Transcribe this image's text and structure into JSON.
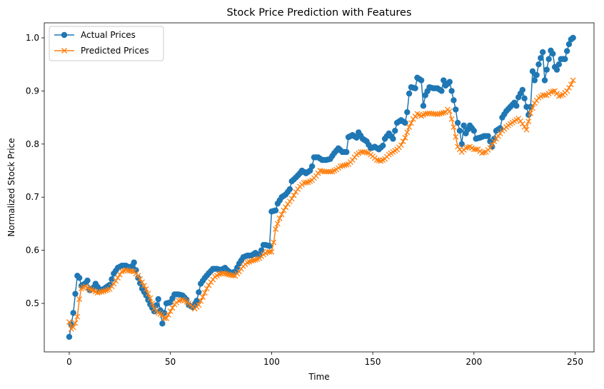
{
  "chart_data": {
    "type": "line",
    "title": "Stock Price Prediction with Features",
    "xlabel": "Time",
    "ylabel": "Normalized Stock Price",
    "xlim": [
      -12.35,
      259.35
    ],
    "ylim": [
      0.4087,
      1.0282
    ],
    "xticks": [
      0,
      50,
      100,
      150,
      200,
      250
    ],
    "yticks": [
      0.5,
      0.6,
      0.7,
      0.8,
      0.9,
      1.0
    ],
    "ytick_labels": [
      "0.5",
      "0.6",
      "0.7",
      "0.8",
      "0.9",
      "1.0"
    ],
    "grid": false,
    "legend_position": "top-left",
    "series": [
      {
        "name": "Actual Prices",
        "color": "#1f77b4",
        "marker": "circle",
        "keypoints": [
          [
            0,
            0.437
          ],
          [
            1,
            0.46
          ],
          [
            2,
            0.482
          ],
          [
            3,
            0.518
          ],
          [
            4,
            0.552
          ],
          [
            5,
            0.548
          ],
          [
            6,
            0.533
          ],
          [
            8,
            0.538
          ],
          [
            9,
            0.543
          ],
          [
            10,
            0.525
          ],
          [
            12,
            0.53
          ],
          [
            13,
            0.537
          ],
          [
            15,
            0.525
          ],
          [
            17,
            0.527
          ],
          [
            20,
            0.535
          ],
          [
            22,
            0.556
          ],
          [
            24,
            0.567
          ],
          [
            26,
            0.571
          ],
          [
            28,
            0.571
          ],
          [
            30,
            0.567
          ],
          [
            31,
            0.57
          ],
          [
            32,
            0.577
          ],
          [
            34,
            0.548
          ],
          [
            36,
            0.528
          ],
          [
            38,
            0.515
          ],
          [
            40,
            0.498
          ],
          [
            42,
            0.485
          ],
          [
            44,
            0.508
          ],
          [
            45,
            0.487
          ],
          [
            46,
            0.462
          ],
          [
            47,
            0.482
          ],
          [
            48,
            0.5
          ],
          [
            50,
            0.502
          ],
          [
            52,
            0.517
          ],
          [
            54,
            0.517
          ],
          [
            56,
            0.515
          ],
          [
            58,
            0.507
          ],
          [
            59,
            0.497
          ],
          [
            61,
            0.493
          ],
          [
            63,
            0.505
          ],
          [
            65,
            0.537
          ],
          [
            67,
            0.548
          ],
          [
            69,
            0.557
          ],
          [
            71,
            0.565
          ],
          [
            73,
            0.565
          ],
          [
            75,
            0.563
          ],
          [
            77,
            0.567
          ],
          [
            78,
            0.563
          ],
          [
            80,
            0.557
          ],
          [
            82,
            0.56
          ],
          [
            84,
            0.575
          ],
          [
            86,
            0.587
          ],
          [
            88,
            0.59
          ],
          [
            90,
            0.59
          ],
          [
            92,
            0.595
          ],
          [
            94,
            0.59
          ],
          [
            96,
            0.61
          ],
          [
            97,
            0.61
          ],
          [
            99,
            0.608
          ],
          [
            100,
            0.673
          ],
          [
            102,
            0.675
          ],
          [
            103,
            0.688
          ],
          [
            105,
            0.7
          ],
          [
            107,
            0.705
          ],
          [
            109,
            0.715
          ],
          [
            110,
            0.73
          ],
          [
            112,
            0.737
          ],
          [
            114,
            0.745
          ],
          [
            115,
            0.75
          ],
          [
            117,
            0.745
          ],
          [
            119,
            0.75
          ],
          [
            120,
            0.758
          ],
          [
            121,
            0.775
          ],
          [
            123,
            0.775
          ],
          [
            125,
            0.77
          ],
          [
            127,
            0.77
          ],
          [
            129,
            0.772
          ],
          [
            131,
            0.783
          ],
          [
            133,
            0.792
          ],
          [
            135,
            0.785
          ],
          [
            137,
            0.785
          ],
          [
            138,
            0.813
          ],
          [
            140,
            0.817
          ],
          [
            142,
            0.812
          ],
          [
            143,
            0.822
          ],
          [
            145,
            0.81
          ],
          [
            147,
            0.805
          ],
          [
            149,
            0.792
          ],
          [
            151,
            0.795
          ],
          [
            153,
            0.79
          ],
          [
            155,
            0.797
          ],
          [
            156,
            0.81
          ],
          [
            158,
            0.82
          ],
          [
            160,
            0.81
          ],
          [
            162,
            0.84
          ],
          [
            164,
            0.845
          ],
          [
            166,
            0.84
          ],
          [
            167,
            0.86
          ],
          [
            168,
            0.895
          ],
          [
            169,
            0.907
          ],
          [
            171,
            0.905
          ],
          [
            172,
            0.925
          ],
          [
            174,
            0.92
          ],
          [
            175,
            0.872
          ],
          [
            176,
            0.892
          ],
          [
            178,
            0.907
          ],
          [
            180,
            0.905
          ],
          [
            182,
            0.905
          ],
          [
            184,
            0.9
          ],
          [
            185,
            0.92
          ],
          [
            186,
            0.91
          ],
          [
            188,
            0.917
          ],
          [
            189,
            0.9
          ],
          [
            191,
            0.865
          ],
          [
            192,
            0.84
          ],
          [
            193,
            0.825
          ],
          [
            194,
            0.8
          ],
          [
            195,
            0.835
          ],
          [
            196,
            0.82
          ],
          [
            198,
            0.835
          ],
          [
            200,
            0.825
          ],
          [
            201,
            0.81
          ],
          [
            203,
            0.812
          ],
          [
            205,
            0.815
          ],
          [
            207,
            0.815
          ],
          [
            209,
            0.795
          ],
          [
            211,
            0.825
          ],
          [
            213,
            0.83
          ],
          [
            214,
            0.85
          ],
          [
            216,
            0.862
          ],
          [
            218,
            0.87
          ],
          [
            220,
            0.878
          ],
          [
            221,
            0.872
          ],
          [
            222,
            0.888
          ],
          [
            224,
            0.902
          ],
          [
            226,
            0.87
          ],
          [
            227,
            0.855
          ],
          [
            228,
            0.87
          ],
          [
            229,
            0.937
          ],
          [
            230,
            0.92
          ],
          [
            231,
            0.93
          ],
          [
            232,
            0.95
          ],
          [
            233,
            0.962
          ],
          [
            234,
            0.973
          ],
          [
            235,
            0.92
          ],
          [
            236,
            0.94
          ],
          [
            237,
            0.96
          ],
          [
            238,
            0.976
          ],
          [
            239,
            0.97
          ],
          [
            240,
            0.945
          ],
          [
            241,
            0.94
          ],
          [
            243,
            0.96
          ],
          [
            245,
            0.96
          ],
          [
            246,
            0.975
          ],
          [
            247,
            0.988
          ],
          [
            248,
            0.997
          ],
          [
            249,
            1.0
          ]
        ]
      },
      {
        "name": "Predicted Prices",
        "color": "#ff7f0e",
        "marker": "x",
        "keypoints": [
          [
            0,
            0.465
          ],
          [
            1,
            0.452
          ],
          [
            2,
            0.455
          ],
          [
            3,
            0.463
          ],
          [
            4,
            0.475
          ],
          [
            5,
            0.508
          ],
          [
            6,
            0.528
          ],
          [
            8,
            0.532
          ],
          [
            10,
            0.527
          ],
          [
            12,
            0.524
          ],
          [
            14,
            0.52
          ],
          [
            16,
            0.522
          ],
          [
            18,
            0.524
          ],
          [
            20,
            0.527
          ],
          [
            22,
            0.537
          ],
          [
            24,
            0.548
          ],
          [
            26,
            0.56
          ],
          [
            28,
            0.563
          ],
          [
            30,
            0.561
          ],
          [
            32,
            0.56
          ],
          [
            34,
            0.552
          ],
          [
            36,
            0.54
          ],
          [
            38,
            0.527
          ],
          [
            40,
            0.51
          ],
          [
            42,
            0.49
          ],
          [
            44,
            0.482
          ],
          [
            46,
            0.478
          ],
          [
            47,
            0.472
          ],
          [
            48,
            0.472
          ],
          [
            50,
            0.485
          ],
          [
            52,
            0.498
          ],
          [
            54,
            0.505
          ],
          [
            56,
            0.507
          ],
          [
            58,
            0.503
          ],
          [
            60,
            0.497
          ],
          [
            62,
            0.49
          ],
          [
            64,
            0.497
          ],
          [
            66,
            0.512
          ],
          [
            68,
            0.528
          ],
          [
            70,
            0.54
          ],
          [
            72,
            0.55
          ],
          [
            74,
            0.555
          ],
          [
            76,
            0.557
          ],
          [
            78,
            0.555
          ],
          [
            80,
            0.553
          ],
          [
            82,
            0.552
          ],
          [
            84,
            0.56
          ],
          [
            86,
            0.57
          ],
          [
            88,
            0.577
          ],
          [
            90,
            0.58
          ],
          [
            92,
            0.582
          ],
          [
            94,
            0.585
          ],
          [
            96,
            0.592
          ],
          [
            98,
            0.597
          ],
          [
            100,
            0.597
          ],
          [
            101,
            0.615
          ],
          [
            102,
            0.64
          ],
          [
            104,
            0.66
          ],
          [
            106,
            0.675
          ],
          [
            108,
            0.687
          ],
          [
            110,
            0.697
          ],
          [
            112,
            0.71
          ],
          [
            114,
            0.72
          ],
          [
            116,
            0.727
          ],
          [
            118,
            0.728
          ],
          [
            120,
            0.732
          ],
          [
            122,
            0.74
          ],
          [
            124,
            0.75
          ],
          [
            126,
            0.748
          ],
          [
            128,
            0.748
          ],
          [
            130,
            0.748
          ],
          [
            132,
            0.752
          ],
          [
            134,
            0.758
          ],
          [
            136,
            0.76
          ],
          [
            138,
            0.762
          ],
          [
            140,
            0.77
          ],
          [
            142,
            0.78
          ],
          [
            144,
            0.785
          ],
          [
            146,
            0.785
          ],
          [
            148,
            0.783
          ],
          [
            150,
            0.777
          ],
          [
            152,
            0.77
          ],
          [
            154,
            0.768
          ],
          [
            156,
            0.772
          ],
          [
            158,
            0.78
          ],
          [
            160,
            0.785
          ],
          [
            162,
            0.79
          ],
          [
            164,
            0.798
          ],
          [
            166,
            0.812
          ],
          [
            168,
            0.832
          ],
          [
            170,
            0.847
          ],
          [
            172,
            0.857
          ],
          [
            174,
            0.853
          ],
          [
            176,
            0.857
          ],
          [
            178,
            0.858
          ],
          [
            180,
            0.857
          ],
          [
            182,
            0.856
          ],
          [
            184,
            0.858
          ],
          [
            186,
            0.86
          ],
          [
            187,
            0.865
          ],
          [
            188,
            0.862
          ],
          [
            190,
            0.832
          ],
          [
            192,
            0.795
          ],
          [
            194,
            0.785
          ],
          [
            196,
            0.793
          ],
          [
            198,
            0.795
          ],
          [
            200,
            0.79
          ],
          [
            202,
            0.79
          ],
          [
            204,
            0.783
          ],
          [
            206,
            0.785
          ],
          [
            208,
            0.793
          ],
          [
            210,
            0.805
          ],
          [
            212,
            0.815
          ],
          [
            214,
            0.825
          ],
          [
            216,
            0.832
          ],
          [
            218,
            0.838
          ],
          [
            220,
            0.843
          ],
          [
            222,
            0.848
          ],
          [
            224,
            0.838
          ],
          [
            226,
            0.827
          ],
          [
            228,
            0.858
          ],
          [
            230,
            0.877
          ],
          [
            232,
            0.887
          ],
          [
            234,
            0.892
          ],
          [
            236,
            0.892
          ],
          [
            238,
            0.898
          ],
          [
            240,
            0.9
          ],
          [
            242,
            0.89
          ],
          [
            244,
            0.893
          ],
          [
            246,
            0.9
          ],
          [
            248,
            0.912
          ],
          [
            249,
            0.92
          ]
        ]
      }
    ]
  }
}
